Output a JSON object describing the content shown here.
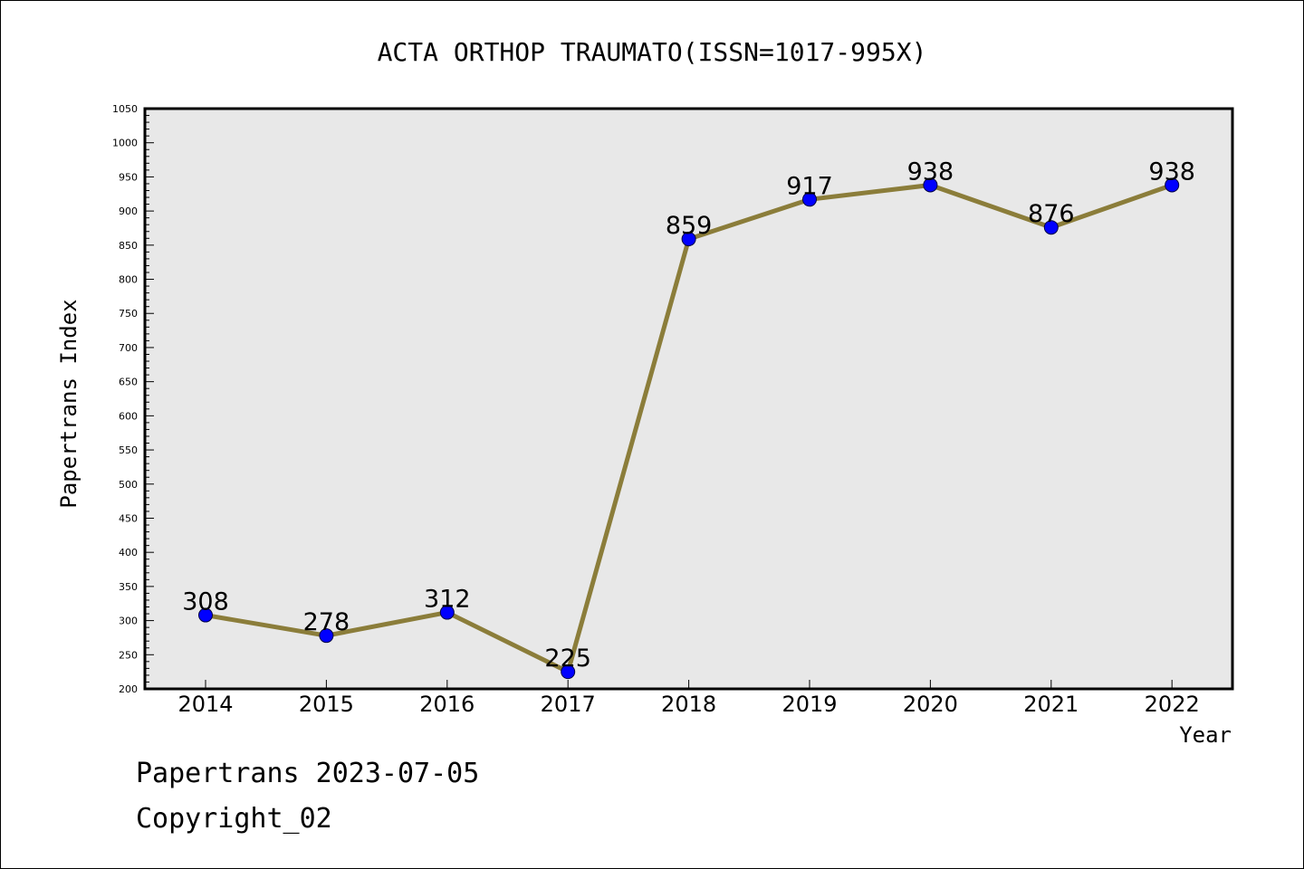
{
  "chart_data": {
    "type": "line",
    "title": "ACTA ORTHOP TRAUMATO(ISSN=1017-995X)",
    "xlabel": "Year",
    "ylabel": "Papertrans Index",
    "categories": [
      "2014",
      "2015",
      "2016",
      "2017",
      "2018",
      "2019",
      "2020",
      "2021",
      "2022"
    ],
    "series": [
      {
        "values": [
          308,
          278,
          312,
          225,
          859,
          917,
          938,
          876,
          938
        ]
      }
    ],
    "ylim": [
      200,
      1050
    ],
    "yticks": [
      "200",
      "250",
      "300",
      "350",
      "400",
      "450",
      "500",
      "550",
      "600",
      "650",
      "700",
      "750",
      "800",
      "850",
      "900",
      "950",
      "1000",
      "1050"
    ],
    "data_labels": [
      "308",
      "278",
      "312",
      "225",
      "859",
      "917",
      "938",
      "876",
      "938"
    ],
    "grid": false,
    "plot_background": "#e8e8e8",
    "line_color": "#8b7d3a",
    "marker_color": "#0000ff"
  },
  "footer": {
    "line1": "Papertrans 2023-07-05",
    "line2": "Copyright_02"
  }
}
